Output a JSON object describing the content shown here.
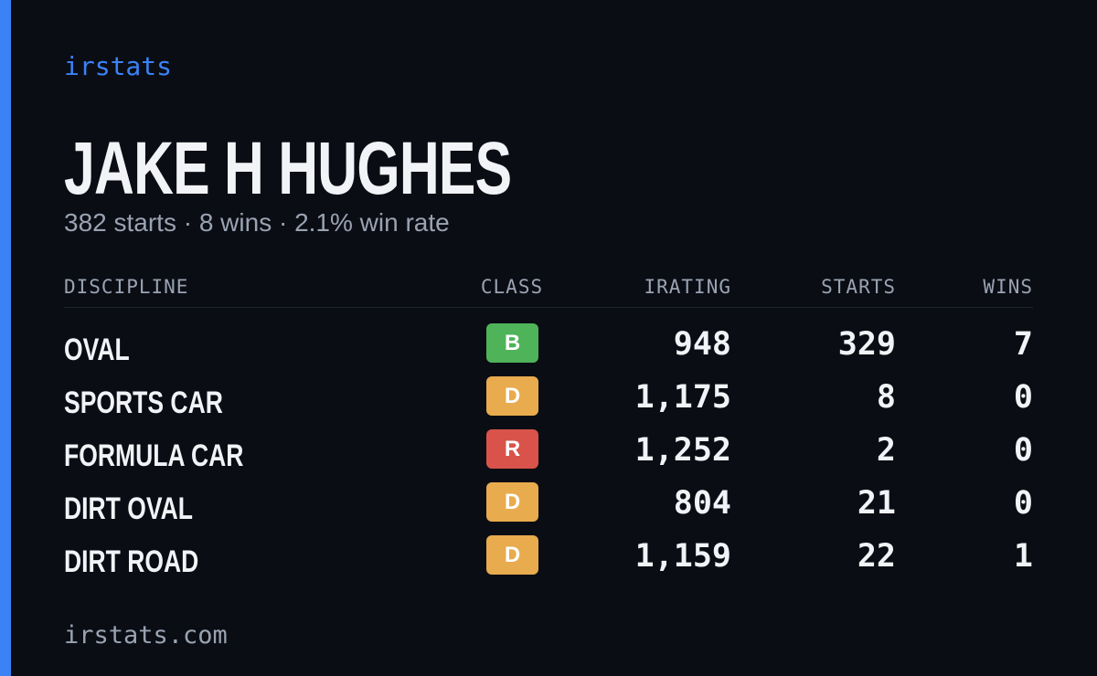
{
  "brand": "irstats",
  "driver": {
    "name": "JAKE H HUGHES",
    "summary": "382 starts · 8 wins · 2.1% win rate"
  },
  "table": {
    "headers": [
      "DISCIPLINE",
      "CLASS",
      "IRATING",
      "STARTS",
      "WINS"
    ],
    "rows": [
      [
        "OVAL",
        "B",
        "948",
        329,
        7
      ],
      [
        "SPORTS CAR",
        "D",
        "1,175",
        8,
        0
      ],
      [
        "FORMULA CAR",
        "R",
        "1,252",
        2,
        0
      ],
      [
        "DIRT OVAL",
        "D",
        "804",
        21,
        0
      ],
      [
        "DIRT ROAD",
        "D",
        "1,159",
        22,
        1
      ]
    ],
    "class_colors": {
      "B": "#4fb35a",
      "D": "#e8ab4e",
      "R": "#d9534b"
    }
  },
  "footer": "irstats.com"
}
